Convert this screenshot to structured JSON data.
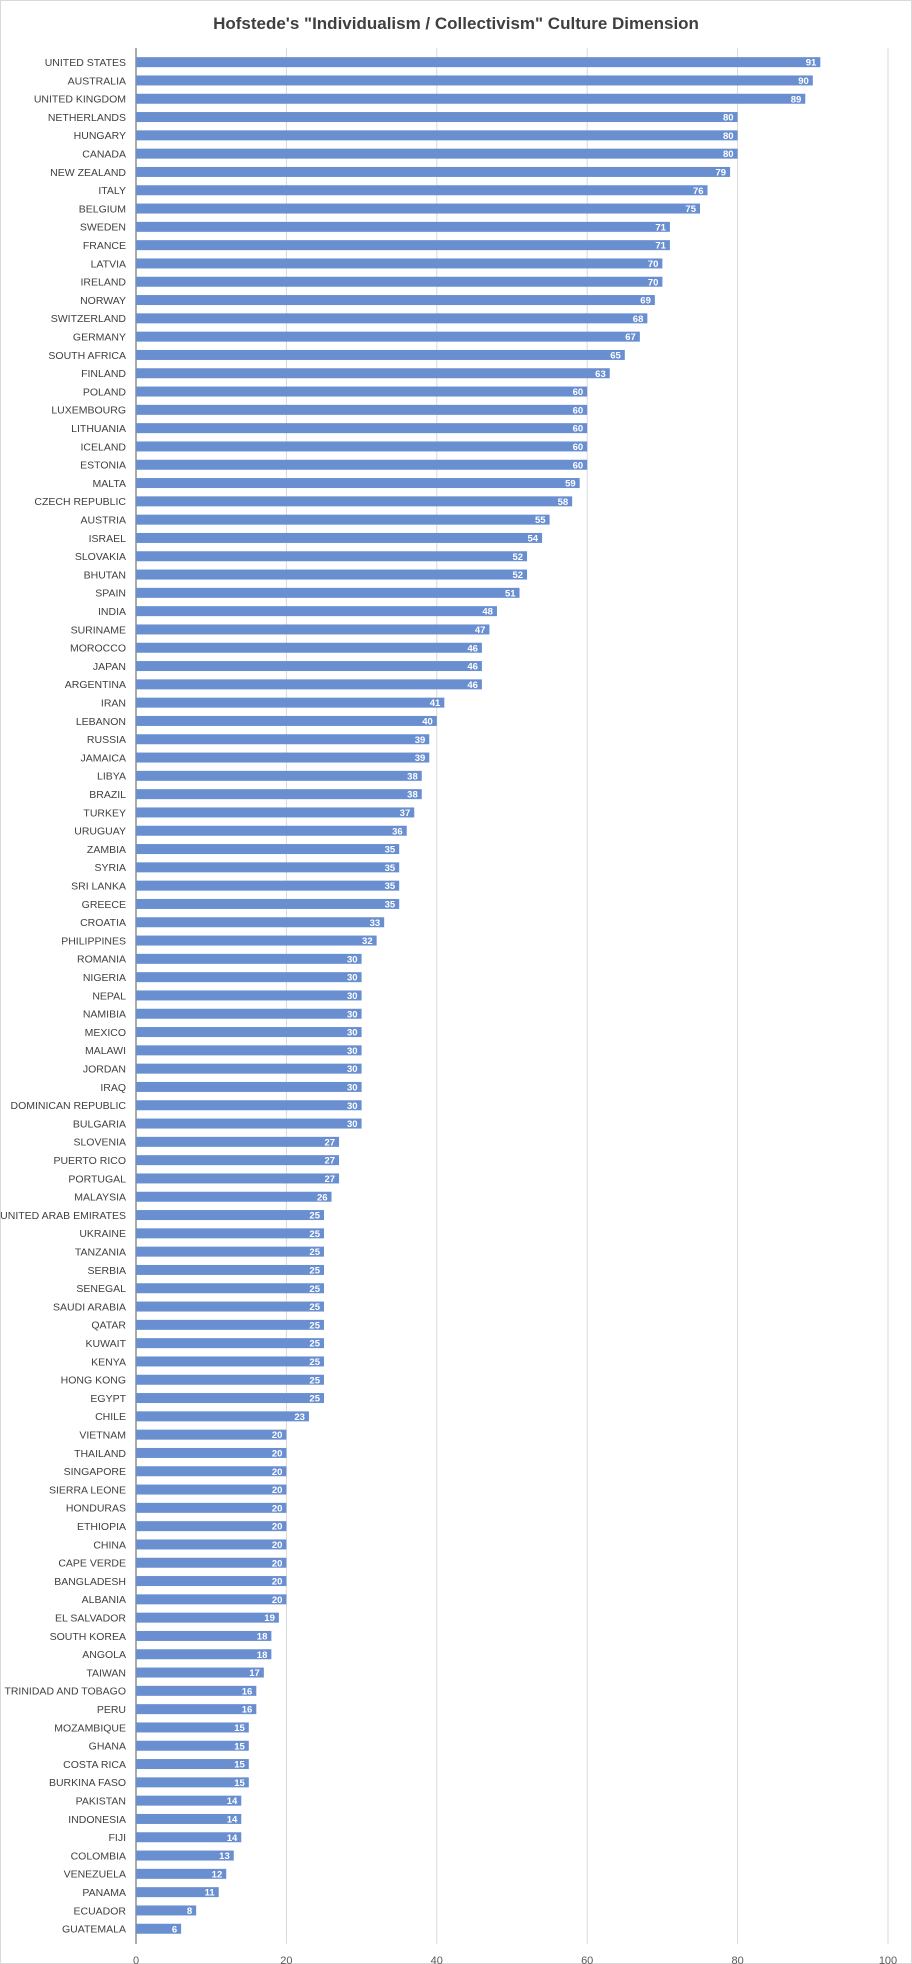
{
  "chart_data": {
    "type": "bar",
    "orientation": "horizontal",
    "title": "Hofstede's \"Individualism / Collectivism\" Culture Dimension",
    "xlabel": "",
    "ylabel": "",
    "xlim": [
      0,
      100
    ],
    "xticks": [
      0,
      20,
      40,
      60,
      80,
      100
    ],
    "grid": true,
    "legend": "none",
    "bar_color": "#6a8fd0",
    "categories": [
      "UNITED STATES",
      "AUSTRALIA",
      "UNITED KINGDOM",
      "NETHERLANDS",
      "HUNGARY",
      "CANADA",
      "NEW ZEALAND",
      "ITALY",
      "BELGIUM",
      "SWEDEN",
      "FRANCE",
      "LATVIA",
      "IRELAND",
      "NORWAY",
      "SWITZERLAND",
      "GERMANY",
      "SOUTH AFRICA",
      "FINLAND",
      "POLAND",
      "LUXEMBOURG",
      "LITHUANIA",
      "ICELAND",
      "ESTONIA",
      "MALTA",
      "CZECH REPUBLIC",
      "AUSTRIA",
      "ISRAEL",
      "SLOVAKIA",
      "BHUTAN",
      "SPAIN",
      "INDIA",
      "SURINAME",
      "MOROCCO",
      "JAPAN",
      "ARGENTINA",
      "IRAN",
      "LEBANON",
      "RUSSIA",
      "JAMAICA",
      "LIBYA",
      "BRAZIL",
      "TURKEY",
      "URUGUAY",
      "ZAMBIA",
      "SYRIA",
      "SRI LANKA",
      "GREECE",
      "CROATIA",
      "PHILIPPINES",
      "ROMANIA",
      "NIGERIA",
      "NEPAL",
      "NAMIBIA",
      "MEXICO",
      "MALAWI",
      "JORDAN",
      "IRAQ",
      "DOMINICAN REPUBLIC",
      "BULGARIA",
      "SLOVENIA",
      "PUERTO RICO",
      "PORTUGAL",
      "MALAYSIA",
      "UNITED ARAB EMIRATES",
      "UKRAINE",
      "TANZANIA",
      "SERBIA",
      "SENEGAL",
      "SAUDI ARABIA",
      "QATAR",
      "KUWAIT",
      "KENYA",
      "HONG KONG",
      "EGYPT",
      "CHILE",
      "VIETNAM",
      "THAILAND",
      "SINGAPORE",
      "SIERRA LEONE",
      "HONDURAS",
      "ETHIOPIA",
      "CHINA",
      "CAPE VERDE",
      "BANGLADESH",
      "ALBANIA",
      "EL SALVADOR",
      "SOUTH KOREA",
      "ANGOLA",
      "TAIWAN",
      "TRINIDAD AND TOBAGO",
      "PERU",
      "MOZAMBIQUE",
      "GHANA",
      "COSTA RICA",
      "BURKINA FASO",
      "PAKISTAN",
      "INDONESIA",
      "FIJI",
      "COLOMBIA",
      "VENEZUELA",
      "PANAMA",
      "ECUADOR",
      "GUATEMALA"
    ],
    "values": [
      91,
      90,
      89,
      80,
      80,
      80,
      79,
      76,
      75,
      71,
      71,
      70,
      70,
      69,
      68,
      67,
      65,
      63,
      60,
      60,
      60,
      60,
      60,
      59,
      58,
      55,
      54,
      52,
      52,
      51,
      48,
      47,
      46,
      46,
      46,
      41,
      40,
      39,
      39,
      38,
      38,
      37,
      36,
      35,
      35,
      35,
      35,
      33,
      32,
      30,
      30,
      30,
      30,
      30,
      30,
      30,
      30,
      30,
      30,
      27,
      27,
      27,
      26,
      25,
      25,
      25,
      25,
      25,
      25,
      25,
      25,
      25,
      25,
      25,
      23,
      20,
      20,
      20,
      20,
      20,
      20,
      20,
      20,
      20,
      20,
      19,
      18,
      18,
      17,
      16,
      16,
      15,
      15,
      15,
      15,
      14,
      14,
      14,
      13,
      12,
      11,
      8,
      6
    ]
  }
}
